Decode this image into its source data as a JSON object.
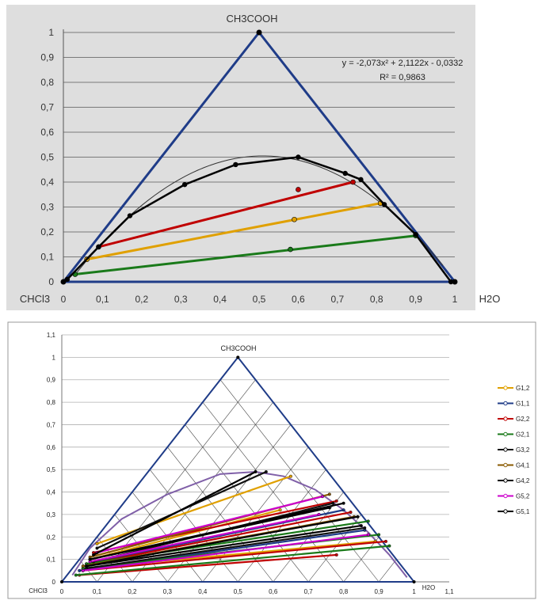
{
  "colors": {
    "triangle": "#1f3c88",
    "binodal": "#000000",
    "tie_red": "#c00000",
    "tie_orange": "#e0a000",
    "tie_green": "#1a7a1a",
    "fit_curve": "#333333",
    "grid": "#999999",
    "panel1_bg": "#dedede",
    "panel2_bg": "#ffffff",
    "lattice": "#444444",
    "boundary2": "#8060a8"
  },
  "chart_data": [
    {
      "type": "line",
      "chart": "ternary-scatter",
      "title": "CH3COOH",
      "corner_labels": {
        "left": "CHCl3",
        "right": "H2O"
      },
      "xlim": [
        0,
        1
      ],
      "ylim": [
        0,
        1
      ],
      "x_ticks": [
        "0",
        "0,1",
        "0,2",
        "0,3",
        "0,4",
        "0,5",
        "0,6",
        "0,7",
        "0,8",
        "0,9",
        "1"
      ],
      "y_ticks": [
        "0",
        "0,1",
        "0,2",
        "0,3",
        "0,4",
        "0,5",
        "0,6",
        "0,7",
        "0,8",
        "0,9",
        "1"
      ],
      "grid": "horizontal",
      "annotation": {
        "equation": "y = -2,073x² + 2,1122x - 0,0332",
        "r2": "R² = 0,9863"
      },
      "triangle": {
        "x": [
          0,
          0.5,
          1,
          0
        ],
        "y": [
          0,
          1,
          0,
          0
        ]
      },
      "binodal": {
        "x": [
          0.01,
          0.09,
          0.17,
          0.31,
          0.44,
          0.6,
          0.72,
          0.76,
          0.82,
          0.9,
          0.99
        ],
        "y": [
          0.01,
          0.14,
          0.265,
          0.39,
          0.47,
          0.5,
          0.435,
          0.41,
          0.31,
          0.19,
          0.0
        ]
      },
      "fit_curve": {
        "a": -2.073,
        "b": 2.1122,
        "c": -0.0332,
        "x_range": [
          0.03,
          0.97
        ]
      },
      "tie_lines": [
        {
          "color": "tie_red",
          "x": [
            0.09,
            0.74
          ],
          "y": [
            0.14,
            0.4
          ],
          "mid": [
            0.6,
            0.37
          ]
        },
        {
          "color": "tie_orange",
          "x": [
            0.06,
            0.81
          ],
          "y": [
            0.09,
            0.315
          ],
          "mid": [
            0.59,
            0.25
          ]
        },
        {
          "color": "tie_green",
          "x": [
            0.03,
            0.9
          ],
          "y": [
            0.03,
            0.185
          ],
          "mid": [
            0.58,
            0.13
          ]
        }
      ]
    },
    {
      "type": "line",
      "chart": "ternary-tie-lines",
      "title": "CH3COOH",
      "corner_labels": {
        "left": "CHCl3",
        "right": "H2O"
      },
      "xlim": [
        0,
        1.1
      ],
      "ylim": [
        0,
        1.1
      ],
      "x_ticks": [
        "0",
        "0,1",
        "0,2",
        "0,3",
        "0,4",
        "0,5",
        "0,6",
        "0,7",
        "0,8",
        "0,9",
        "1",
        "1,1"
      ],
      "y_ticks": [
        "0",
        "0,1",
        "0,2",
        "0,3",
        "0,4",
        "0,5",
        "0,6",
        "0,7",
        "0,8",
        "0,9",
        "1",
        "1,1"
      ],
      "grid": "horizontal",
      "legend_position": "right",
      "boundary": {
        "x": [
          0.03,
          0.08,
          0.17,
          0.3,
          0.45,
          0.55,
          0.63,
          0.72,
          0.8,
          0.87,
          0.93,
          0.98
        ],
        "y": [
          0.03,
          0.15,
          0.28,
          0.39,
          0.48,
          0.49,
          0.47,
          0.41,
          0.32,
          0.22,
          0.12,
          0.02
        ]
      },
      "series": [
        {
          "name": "G1,2",
          "color": "#e0a000",
          "lines": [
            [
              0.1,
              0.17,
              0.65,
              0.47
            ],
            [
              0.08,
              0.1,
              0.62,
              0.32
            ],
            [
              0.06,
              0.06,
              0.89,
              0.18
            ]
          ]
        },
        {
          "name": "G1,1",
          "color": "#1f3c88",
          "lines": [
            [
              0.07,
              0.08,
              0.8,
              0.32
            ],
            [
              0.05,
              0.05,
              0.86,
              0.23
            ]
          ]
        },
        {
          "name": "G2,2",
          "color": "#c00000",
          "lines": [
            [
              0.09,
              0.13,
              0.78,
              0.36
            ],
            [
              0.08,
              0.08,
              0.82,
              0.31
            ],
            [
              0.06,
              0.05,
              0.92,
              0.18
            ],
            [
              0.05,
              0.03,
              0.78,
              0.12
            ]
          ]
        },
        {
          "name": "G2,1",
          "color": "#1a7a1a",
          "lines": [
            [
              0.07,
              0.08,
              0.87,
              0.27
            ],
            [
              0.06,
              0.06,
              0.9,
              0.21
            ],
            [
              0.04,
              0.03,
              0.93,
              0.16
            ]
          ]
        },
        {
          "name": "G3,2",
          "color": "#111111",
          "lines": [
            [
              0.1,
              0.15,
              0.58,
              0.49
            ],
            [
              0.09,
              0.09,
              0.77,
              0.35
            ],
            [
              0.07,
              0.06,
              0.86,
              0.24
            ]
          ]
        },
        {
          "name": "G4,1",
          "color": "#8a5a00",
          "lines": [
            [
              0.08,
              0.11,
              0.76,
              0.39
            ],
            [
              0.06,
              0.07,
              0.83,
              0.29
            ]
          ]
        },
        {
          "name": "G4,2",
          "color": "#000000",
          "lines": [
            [
              0.08,
              0.1,
              0.8,
              0.35
            ],
            [
              0.07,
              0.07,
              0.84,
              0.29
            ]
          ]
        },
        {
          "name": "G5,2",
          "color": "#cc00cc",
          "lines": [
            [
              0.1,
              0.13,
              0.74,
              0.38
            ],
            [
              0.08,
              0.09,
              0.73,
              0.3
            ],
            [
              0.06,
              0.05,
              0.87,
              0.21
            ]
          ]
        },
        {
          "name": "G5,1",
          "color": "#000000",
          "lines": [
            [
              0.09,
              0.12,
              0.55,
              0.49
            ],
            [
              0.08,
              0.1,
              0.76,
              0.33
            ],
            [
              0.07,
              0.07,
              0.85,
              0.25
            ]
          ]
        }
      ]
    }
  ]
}
